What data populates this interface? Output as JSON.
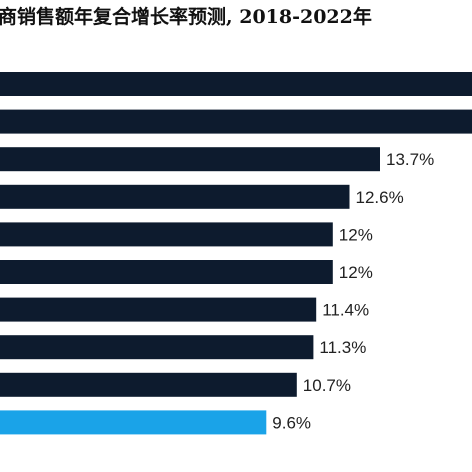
{
  "chart_data": {
    "type": "bar",
    "orientation": "horizontal",
    "title": "商销售额年复合增长率预测, 2018-2022年",
    "values": [
      null,
      null,
      13.7,
      12.6,
      12.0,
      12.0,
      11.4,
      11.3,
      10.7,
      9.6
    ],
    "value_labels": [
      "",
      "",
      "13.7%",
      "12.6%",
      "12%",
      "12%",
      "11.4%",
      "11.3%",
      "10.7%",
      "9.6%"
    ],
    "xlim": [
      0,
      17
    ],
    "grid": false,
    "colors": {
      "default": "#0d1b2e",
      "highlight": "#1aa3e8"
    },
    "highlight_index": 9
  }
}
